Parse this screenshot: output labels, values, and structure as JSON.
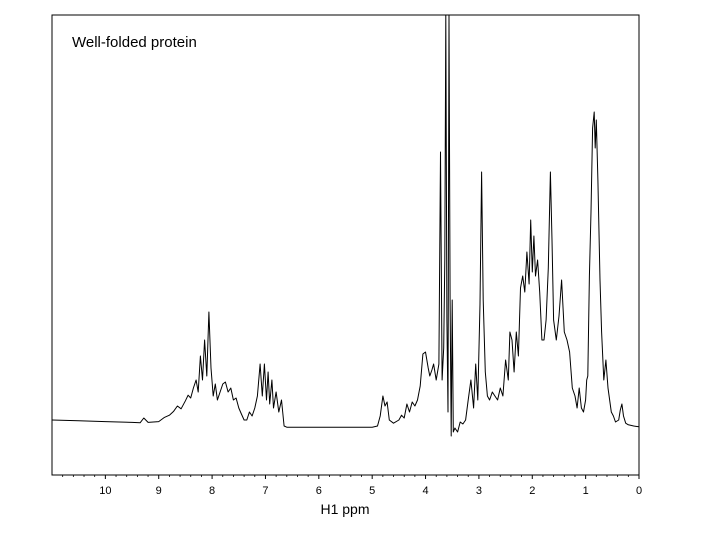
{
  "chart_data": {
    "type": "line",
    "title": "",
    "annotation": "Well-folded protein",
    "xlabel": "H1 ppm",
    "ylabel": "",
    "x_reversed": true,
    "xlim": [
      11,
      0
    ],
    "ylim": [
      -0.08,
      1.0
    ],
    "grid": false,
    "x_ticks": [
      "10",
      "9",
      "8",
      "7",
      "6",
      "5",
      "4",
      "3",
      "2",
      "1",
      "0"
    ],
    "series": [
      {
        "points": [
          [
            11.0,
            0.0
          ],
          [
            10.5,
            -0.002
          ],
          [
            10.0,
            -0.004
          ],
          [
            9.5,
            -0.006
          ],
          [
            9.35,
            -0.007
          ],
          [
            9.28,
            0.005
          ],
          [
            9.2,
            -0.006
          ],
          [
            9.0,
            -0.004
          ],
          [
            8.9,
            0.006
          ],
          [
            8.8,
            0.012
          ],
          [
            8.72,
            0.022
          ],
          [
            8.65,
            0.035
          ],
          [
            8.58,
            0.028
          ],
          [
            8.5,
            0.048
          ],
          [
            8.45,
            0.062
          ],
          [
            8.4,
            0.055
          ],
          [
            8.35,
            0.08
          ],
          [
            8.3,
            0.1
          ],
          [
            8.26,
            0.07
          ],
          [
            8.22,
            0.16
          ],
          [
            8.18,
            0.1
          ],
          [
            8.14,
            0.2
          ],
          [
            8.1,
            0.11
          ],
          [
            8.06,
            0.27
          ],
          [
            8.02,
            0.13
          ],
          [
            7.98,
            0.06
          ],
          [
            7.94,
            0.09
          ],
          [
            7.9,
            0.05
          ],
          [
            7.85,
            0.07
          ],
          [
            7.8,
            0.09
          ],
          [
            7.75,
            0.095
          ],
          [
            7.7,
            0.07
          ],
          [
            7.65,
            0.08
          ],
          [
            7.6,
            0.05
          ],
          [
            7.55,
            0.055
          ],
          [
            7.5,
            0.03
          ],
          [
            7.45,
            0.015
          ],
          [
            7.4,
            0.0
          ],
          [
            7.35,
            0.0
          ],
          [
            7.3,
            0.02
          ],
          [
            7.25,
            0.01
          ],
          [
            7.2,
            0.03
          ],
          [
            7.15,
            0.06
          ],
          [
            7.1,
            0.14
          ],
          [
            7.06,
            0.06
          ],
          [
            7.02,
            0.14
          ],
          [
            6.98,
            0.05
          ],
          [
            6.95,
            0.12
          ],
          [
            6.92,
            0.04
          ],
          [
            6.88,
            0.1
          ],
          [
            6.85,
            0.03
          ],
          [
            6.8,
            0.07
          ],
          [
            6.75,
            0.02
          ],
          [
            6.7,
            0.05
          ],
          [
            6.65,
            -0.015
          ],
          [
            6.6,
            -0.018
          ],
          [
            6.0,
            -0.018
          ],
          [
            5.5,
            -0.018
          ],
          [
            5.0,
            -0.018
          ],
          [
            4.9,
            -0.015
          ],
          [
            4.85,
            0.01
          ],
          [
            4.8,
            0.06
          ],
          [
            4.76,
            0.035
          ],
          [
            4.72,
            0.045
          ],
          [
            4.68,
            0.0
          ],
          [
            4.6,
            -0.008
          ],
          [
            4.5,
            0.0
          ],
          [
            4.45,
            0.012
          ],
          [
            4.4,
            0.005
          ],
          [
            4.35,
            0.04
          ],
          [
            4.3,
            0.02
          ],
          [
            4.25,
            0.045
          ],
          [
            4.2,
            0.035
          ],
          [
            4.15,
            0.05
          ],
          [
            4.1,
            0.085
          ],
          [
            4.05,
            0.165
          ],
          [
            4.0,
            0.17
          ],
          [
            3.95,
            0.13
          ],
          [
            3.92,
            0.11
          ],
          [
            3.88,
            0.125
          ],
          [
            3.85,
            0.14
          ],
          [
            3.8,
            0.1
          ],
          [
            3.75,
            0.14
          ],
          [
            3.72,
            0.67
          ],
          [
            3.69,
            0.1
          ],
          [
            3.66,
            0.18
          ],
          [
            3.64,
            0.4
          ],
          [
            3.62,
            1.05
          ],
          [
            3.6,
            0.25
          ],
          [
            3.58,
            0.02
          ],
          [
            3.56,
            1.05
          ],
          [
            3.54,
            0.3
          ],
          [
            3.52,
            -0.04
          ],
          [
            3.5,
            0.3
          ],
          [
            3.48,
            -0.03
          ],
          [
            3.45,
            -0.02
          ],
          [
            3.4,
            -0.03
          ],
          [
            3.35,
            -0.005
          ],
          [
            3.3,
            -0.01
          ],
          [
            3.25,
            0.0
          ],
          [
            3.2,
            0.05
          ],
          [
            3.15,
            0.1
          ],
          [
            3.1,
            0.03
          ],
          [
            3.06,
            0.14
          ],
          [
            3.02,
            0.05
          ],
          [
            2.98,
            0.29
          ],
          [
            2.95,
            0.62
          ],
          [
            2.92,
            0.3
          ],
          [
            2.88,
            0.12
          ],
          [
            2.84,
            0.06
          ],
          [
            2.8,
            0.05
          ],
          [
            2.75,
            0.07
          ],
          [
            2.7,
            0.06
          ],
          [
            2.65,
            0.05
          ],
          [
            2.6,
            0.08
          ],
          [
            2.55,
            0.06
          ],
          [
            2.5,
            0.15
          ],
          [
            2.45,
            0.1
          ],
          [
            2.42,
            0.22
          ],
          [
            2.38,
            0.2
          ],
          [
            2.34,
            0.12
          ],
          [
            2.3,
            0.22
          ],
          [
            2.26,
            0.16
          ],
          [
            2.22,
            0.33
          ],
          [
            2.18,
            0.36
          ],
          [
            2.14,
            0.32
          ],
          [
            2.1,
            0.42
          ],
          [
            2.06,
            0.34
          ],
          [
            2.03,
            0.5
          ],
          [
            2.0,
            0.37
          ],
          [
            1.97,
            0.46
          ],
          [
            1.94,
            0.36
          ],
          [
            1.9,
            0.4
          ],
          [
            1.86,
            0.32
          ],
          [
            1.82,
            0.2
          ],
          [
            1.78,
            0.2
          ],
          [
            1.74,
            0.25
          ],
          [
            1.7,
            0.38
          ],
          [
            1.66,
            0.62
          ],
          [
            1.63,
            0.45
          ],
          [
            1.6,
            0.25
          ],
          [
            1.55,
            0.2
          ],
          [
            1.5,
            0.26
          ],
          [
            1.45,
            0.35
          ],
          [
            1.4,
            0.22
          ],
          [
            1.35,
            0.2
          ],
          [
            1.3,
            0.17
          ],
          [
            1.25,
            0.08
          ],
          [
            1.2,
            0.06
          ],
          [
            1.16,
            0.03
          ],
          [
            1.12,
            0.08
          ],
          [
            1.08,
            0.03
          ],
          [
            1.04,
            0.02
          ],
          [
            1.0,
            0.05
          ],
          [
            0.98,
            0.1
          ],
          [
            0.96,
            0.11
          ],
          [
            0.93,
            0.36
          ],
          [
            0.9,
            0.52
          ],
          [
            0.87,
            0.73
          ],
          [
            0.84,
            0.77
          ],
          [
            0.82,
            0.68
          ],
          [
            0.8,
            0.75
          ],
          [
            0.77,
            0.6
          ],
          [
            0.73,
            0.35
          ],
          [
            0.7,
            0.22
          ],
          [
            0.66,
            0.1
          ],
          [
            0.62,
            0.15
          ],
          [
            0.58,
            0.08
          ],
          [
            0.52,
            0.02
          ],
          [
            0.48,
            0.01
          ],
          [
            0.44,
            -0.005
          ],
          [
            0.38,
            0.0
          ],
          [
            0.35,
            0.025
          ],
          [
            0.32,
            0.04
          ],
          [
            0.29,
            0.01
          ],
          [
            0.25,
            -0.008
          ],
          [
            0.2,
            -0.012
          ],
          [
            0.1,
            -0.015
          ],
          [
            0.0,
            -0.017
          ]
        ]
      }
    ]
  }
}
